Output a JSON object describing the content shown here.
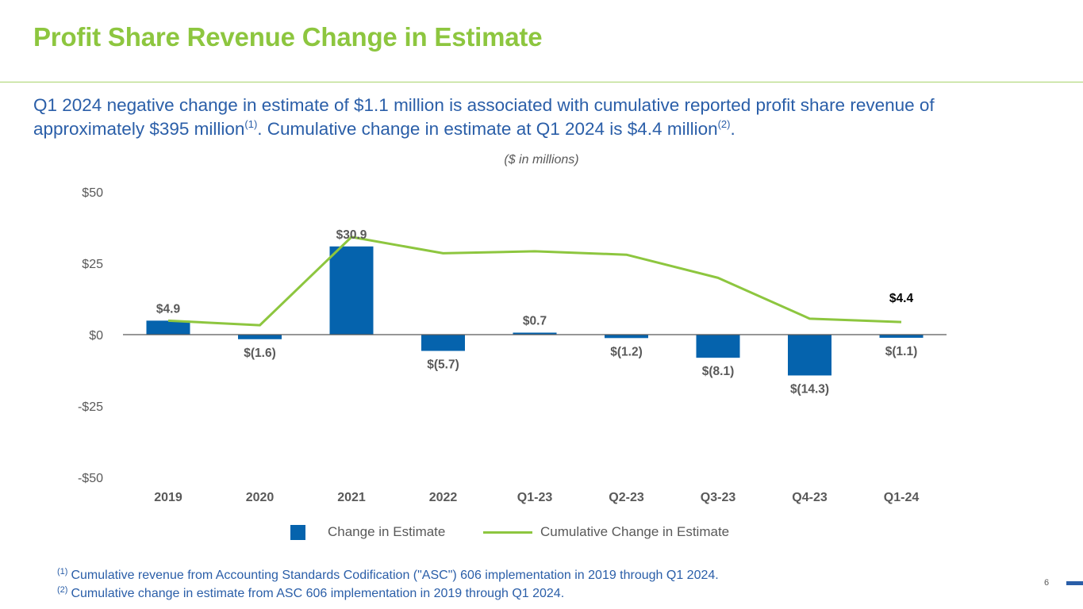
{
  "header": {
    "title": "Profit Share Revenue Change in Estimate",
    "subtitle_part1": "Q1 2024 negative change in estimate of $1.1 million is associated with cumulative reported profit share revenue of approximately $395 million",
    "subtitle_sup1": "(1)",
    "subtitle_part2": ".  Cumulative change in estimate at Q1 2024 is $4.4 million",
    "subtitle_sup2": "(2)",
    "subtitle_part3": ".",
    "units_note": "($ in millions)"
  },
  "colors": {
    "title_green": "#8dc63f",
    "text_blue": "#2a5ea8",
    "bar_blue": "#0563ad",
    "line_green": "#8dc63f",
    "axis_gray": "#595959"
  },
  "chart_data": {
    "type": "bar",
    "title": "",
    "xlabel": "",
    "ylabel": "",
    "ylim": [
      -50,
      50
    ],
    "yticks": [
      50,
      25,
      0,
      -25,
      -50
    ],
    "ytick_labels": [
      "$50",
      "$25",
      "$0",
      "-$25",
      "-$50"
    ],
    "grid": false,
    "legend_position": "bottom",
    "categories": [
      "2019",
      "2020",
      "2021",
      "2022",
      "Q1-23",
      "Q2-23",
      "Q3-23",
      "Q4-23",
      "Q1-24"
    ],
    "series": [
      {
        "name": "Change in Estimate",
        "type": "bar",
        "values": [
          4.9,
          -1.6,
          30.9,
          -5.7,
          0.7,
          -1.2,
          -8.1,
          -14.3,
          -1.1
        ],
        "labels": [
          "$4.9",
          "$(1.6)",
          "$30.9",
          "$(5.7)",
          "$0.7",
          "$(1.2)",
          "$(8.1)",
          "$(14.3)",
          "$(1.1)"
        ]
      },
      {
        "name": "Cumulative Change in Estimate",
        "type": "line",
        "values": [
          4.9,
          3.3,
          34.2,
          28.5,
          29.2,
          28.0,
          19.9,
          5.6,
          4.4
        ],
        "end_label": "$4.4"
      }
    ]
  },
  "legend": {
    "bar_label": "Change in Estimate",
    "line_label": "Cumulative Change in Estimate"
  },
  "footnotes": [
    {
      "marker": "(1)",
      "text": "Cumulative revenue from Accounting Standards Codification (\"ASC\") 606 implementation in 2019 through Q1 2024."
    },
    {
      "marker": "(2)",
      "text": "Cumulative change in estimate from ASC 606 implementation in 2019 through Q1 2024."
    }
  ],
  "page_number": "6"
}
